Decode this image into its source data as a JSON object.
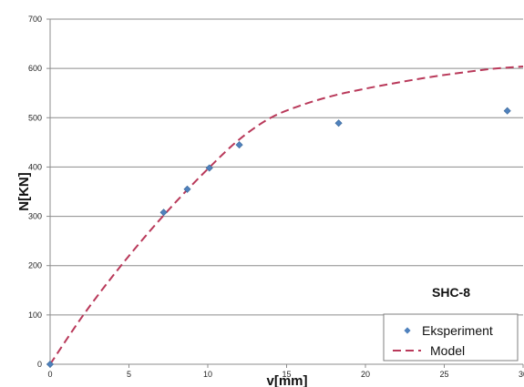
{
  "chart_data": {
    "type": "scatter",
    "xlabel": "v[mm]",
    "ylabel": "N[KN]",
    "xlim": [
      0,
      30
    ],
    "ylim": [
      0,
      700
    ],
    "x_ticks": [
      "0",
      "5",
      "10",
      "15",
      "20",
      "25",
      "30"
    ],
    "y_ticks": [
      "0",
      "100",
      "200",
      "300",
      "400",
      "500",
      "600",
      "700"
    ],
    "grid": "horizontal",
    "annotation": "SHC-8",
    "legend_position": "bottom-right",
    "series": [
      {
        "name": "Eksperiment",
        "style": "diamond-markers",
        "color": "#4f81bd",
        "points": [
          {
            "x": 0,
            "y": 0
          },
          {
            "x": 7.2,
            "y": 308
          },
          {
            "x": 8.7,
            "y": 355
          },
          {
            "x": 10.1,
            "y": 398
          },
          {
            "x": 12.0,
            "y": 445
          },
          {
            "x": 18.3,
            "y": 489
          },
          {
            "x": 29.0,
            "y": 514
          }
        ]
      },
      {
        "name": "Model",
        "style": "dashed-line",
        "color": "#b9395a",
        "points": [
          {
            "x": 0,
            "y": 0
          },
          {
            "x": 2,
            "y": 95
          },
          {
            "x": 4,
            "y": 180
          },
          {
            "x": 6,
            "y": 258
          },
          {
            "x": 8,
            "y": 330
          },
          {
            "x": 10,
            "y": 396
          },
          {
            "x": 12,
            "y": 456
          },
          {
            "x": 14,
            "y": 500
          },
          {
            "x": 16,
            "y": 526
          },
          {
            "x": 18,
            "y": 545
          },
          {
            "x": 20,
            "y": 559
          },
          {
            "x": 22,
            "y": 571
          },
          {
            "x": 24,
            "y": 582
          },
          {
            "x": 26,
            "y": 591
          },
          {
            "x": 28,
            "y": 599
          },
          {
            "x": 30,
            "y": 604
          }
        ]
      }
    ]
  }
}
